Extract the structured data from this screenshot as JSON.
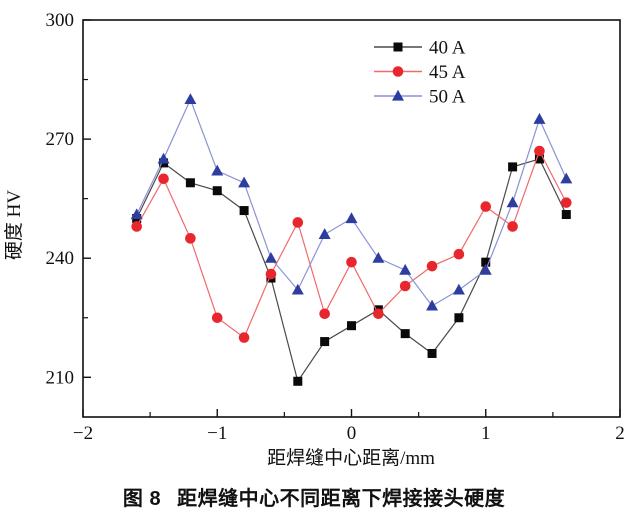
{
  "figure": {
    "caption_prefix": "图 8",
    "caption_text": "距焊缝中心不同距离下焊接接头硬度"
  },
  "chart_data": {
    "type": "line",
    "title": "",
    "xlabel": "距焊缝中心距离/mm",
    "ylabel": "硬度 HV",
    "xlim": [
      -2,
      2
    ],
    "ylim": [
      200,
      300
    ],
    "grid": false,
    "legend_position": "inside-top-center",
    "x_major_ticks": [
      -2,
      -1,
      0,
      1,
      2
    ],
    "x_tick_labels": [
      "−2",
      "−1",
      "0",
      "1",
      "2"
    ],
    "x_minor_ticks": [
      -1.5,
      -0.5,
      0.5,
      1.5
    ],
    "y_major_ticks": [
      210,
      240,
      270,
      300
    ],
    "y_tick_labels": [
      "210",
      "240",
      "270",
      "300"
    ],
    "y_minor_ticks": [
      225,
      255,
      285
    ],
    "x": [
      -1.6,
      -1.4,
      -1.2,
      -1.0,
      -0.8,
      -0.6,
      -0.4,
      -0.2,
      0,
      0.2,
      0.4,
      0.6,
      0.8,
      1.0,
      1.2,
      1.4,
      1.6
    ],
    "series": [
      {
        "name": "40 A",
        "marker": "square",
        "marker_color": "#0a0a0a",
        "line_color": "#4a4a4a",
        "values": [
          250,
          264,
          259,
          257,
          252,
          235,
          209,
          219,
          223,
          227,
          221,
          216,
          225,
          239,
          263,
          265,
          251
        ]
      },
      {
        "name": "45 A",
        "marker": "circle",
        "marker_color": "#e8262d",
        "line_color": "#f2686c",
        "values": [
          248,
          260,
          245,
          225,
          220,
          236,
          249,
          226,
          239,
          226,
          233,
          238,
          241,
          253,
          248,
          267,
          254
        ]
      },
      {
        "name": "50 A",
        "marker": "triangle",
        "marker_color": "#2e3da0",
        "line_color": "#8a93d4",
        "values": [
          251,
          265,
          280,
          262,
          259,
          240,
          232,
          246,
          250,
          240,
          237,
          228,
          232,
          237,
          254,
          275,
          260
        ]
      }
    ]
  }
}
